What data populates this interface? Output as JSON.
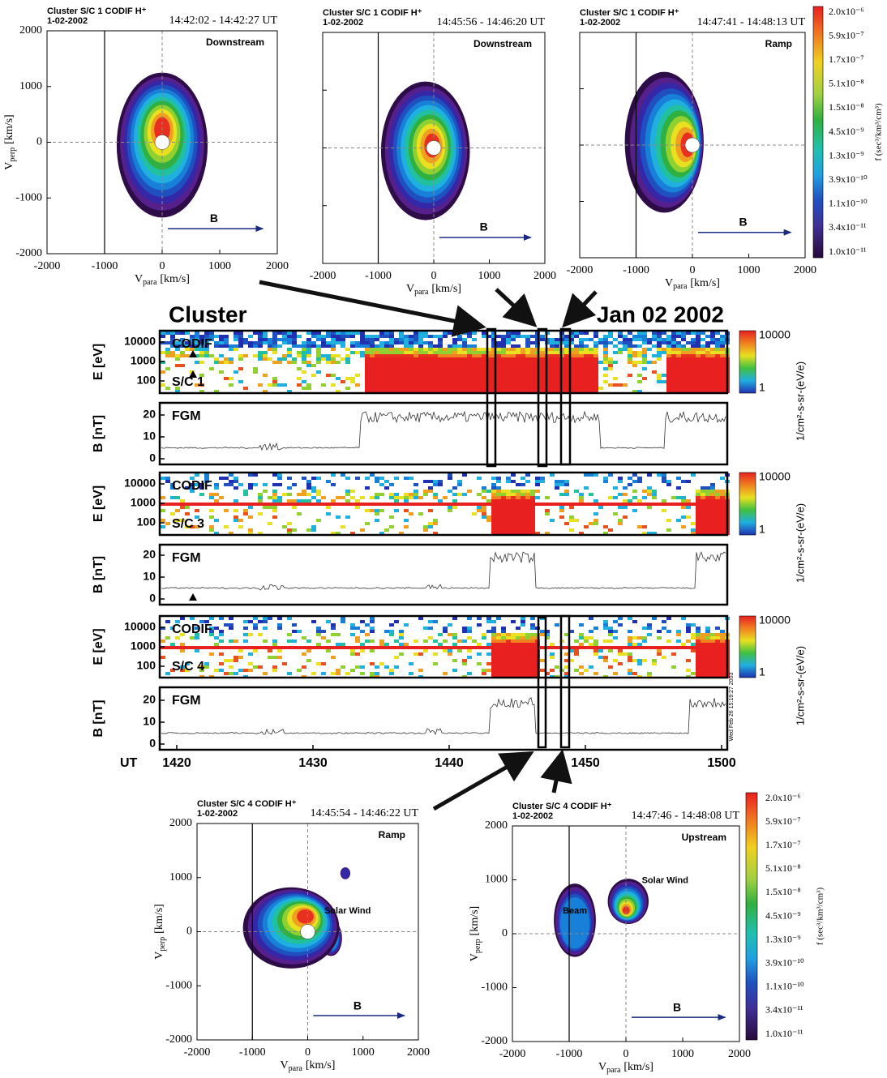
{
  "top_panels": [
    {
      "header": "Cluster S/C 1 CODIF  H⁺",
      "date": "1-02-2002",
      "time": "14:42:02 - 14:42:27 UT",
      "region": "Downstream",
      "field": "B",
      "xticks": [
        -2000,
        -1000,
        0,
        1000,
        2000
      ],
      "yticks": [
        -2000,
        -1000,
        0,
        1000,
        2000
      ],
      "xlabel": {
        "symbol": "V",
        "sub": "para",
        "unit": "[km/s]"
      },
      "ylabel": {
        "symbol": "V",
        "sub": "perp",
        "unit": "[km/s]"
      }
    },
    {
      "header": "Cluster S/C 1 CODIF  H⁺",
      "date": "1-02-2002",
      "time": "14:45:56 - 14:46:20 UT",
      "region": "Downstream",
      "field": "B",
      "xticks": [
        -2000,
        -1000,
        0,
        1000,
        2000
      ],
      "xlabel": {
        "symbol": "V",
        "sub": "para",
        "unit": "[km/s]"
      }
    },
    {
      "header": "Cluster S/C 1 CODIF  H⁺",
      "date": "1-02-2002",
      "time": "14:47:41 - 14:48:13 UT",
      "region": "Ramp",
      "field": "B",
      "xticks": [
        -2000,
        -1000,
        0,
        1000,
        2000
      ],
      "xlabel": {
        "symbol": "V",
        "sub": "para",
        "unit": "[km/s]"
      }
    }
  ],
  "top_colorbar": {
    "labels": [
      "2.0x10⁻⁶",
      "5.9x10⁻⁷",
      "1.7x10⁻⁷",
      "5.1x10⁻⁸",
      "1.5x10⁻⁸",
      "4.5x10⁻⁹",
      "1.3x10⁻⁹",
      "3.9x10⁻¹⁰",
      "1.1x10⁻¹⁰",
      "3.4x10⁻¹¹",
      "1.0x10⁻¹¹"
    ],
    "title": "f (sec³/km³/cm³)"
  },
  "overview": {
    "title": "Cluster",
    "date": "Jan 02 2002",
    "xlabel": "UT",
    "xticks": [
      1420,
      1430,
      1440,
      1450,
      1500
    ],
    "stamp": "Wed Feb 26 15:19:27 2003",
    "strips": [
      {
        "ylabel": "E [eV]",
        "labels": [
          "CODIF",
          "S/C 1"
        ],
        "yticks": [
          10000,
          1000,
          100
        ],
        "colorbar": {
          "labels": [
            "10000",
            "1"
          ],
          "unit": "1/cm²-s-sr-(eV/e)"
        }
      },
      {
        "ylabel": "B [nT]",
        "labels": [
          "FGM"
        ],
        "yticks": [
          20,
          10,
          0
        ]
      },
      {
        "ylabel": "E [eV]",
        "labels": [
          "CODIF",
          "S/C 3"
        ],
        "yticks": [
          10000,
          1000,
          100
        ],
        "colorbar": {
          "labels": [
            "10000",
            "1"
          ],
          "unit": "1/cm²-s-sr-(eV/e)"
        }
      },
      {
        "ylabel": "B [nT]",
        "labels": [
          "FGM"
        ],
        "yticks": [
          20,
          10,
          0
        ]
      },
      {
        "ylabel": "E [eV]",
        "labels": [
          "CODIF",
          "S/C 4"
        ],
        "yticks": [
          10000,
          1000,
          100
        ],
        "colorbar": {
          "labels": [
            "10000",
            "1"
          ],
          "unit": "1/cm²-s-sr-(eV/e)"
        }
      },
      {
        "ylabel": "B [nT]",
        "labels": [
          "FGM"
        ],
        "yticks": [
          20,
          10,
          0
        ]
      }
    ]
  },
  "bottom_panels": [
    {
      "header": "Cluster S/C 4 CODIF  H⁺",
      "date": "1-02-2002",
      "time": "14:45:54 - 14:46:22 UT",
      "region": "Ramp",
      "field": "B",
      "annotations": [
        "Solar Wind"
      ],
      "xticks": [
        -2000,
        -1000,
        0,
        1000,
        2000
      ],
      "yticks": [
        -2000,
        -1000,
        0,
        1000,
        2000
      ],
      "xlabel": {
        "symbol": "V",
        "sub": "para",
        "unit": "[km/s]"
      },
      "ylabel": {
        "symbol": "V",
        "sub": "perp",
        "unit": "[km/s]"
      }
    },
    {
      "header": "Cluster S/C 4 CODIF  H⁺",
      "date": "1-02-2002",
      "time": "14:47:46 - 14:48:08 UT",
      "region": "Upstream",
      "field": "B",
      "annotations": [
        "Solar Wind",
        "Beam"
      ],
      "xticks": [
        -2000,
        -1000,
        0,
        1000,
        2000
      ],
      "yticks": [
        -2000,
        -1000,
        0,
        1000,
        2000
      ],
      "xlabel": {
        "symbol": "V",
        "sub": "para",
        "unit": "[km/s]"
      },
      "ylabel": {
        "symbol": "V",
        "sub": "perp",
        "unit": "[km/s]"
      }
    }
  ],
  "bottom_colorbar": {
    "labels": [
      "2.0x10⁻⁶",
      "5.9x10⁻⁷",
      "1.7x10⁻⁷",
      "5.1x10⁻⁸",
      "1.5x10⁻⁸",
      "4.5x10⁻⁹",
      "1.3x10⁻⁹",
      "3.9x10⁻¹⁰",
      "1.1x10⁻¹⁰",
      "3.4x10⁻¹¹",
      "1.0x10⁻¹¹"
    ],
    "title": "f (sec³/km³/cm³)"
  }
}
